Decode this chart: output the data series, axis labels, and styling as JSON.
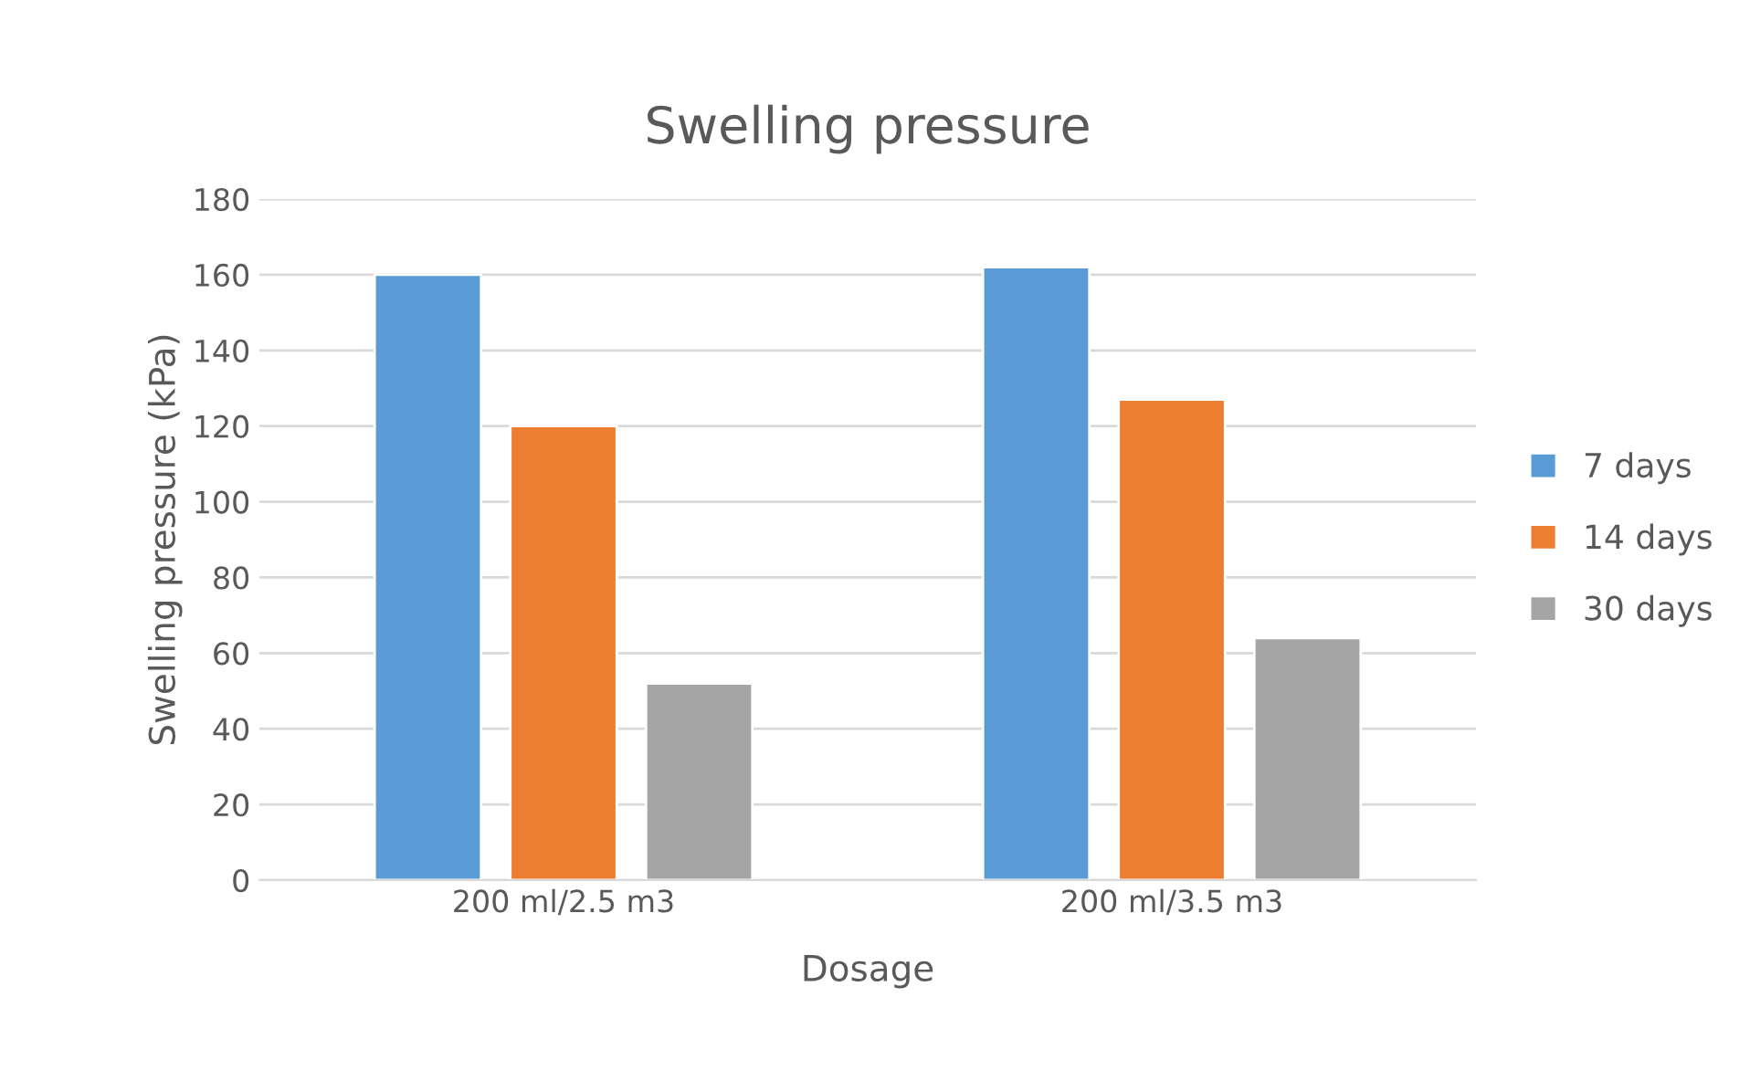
{
  "chart_data": {
    "type": "bar",
    "title": "Swelling pressure",
    "xlabel": "Dosage",
    "ylabel": "Swelling pressure (kPa)",
    "categories": [
      "200 ml/2.5 m3",
      "200 ml/3.5 m3"
    ],
    "series": [
      {
        "name": "7 days",
        "color": "#5b9bd5",
        "values": [
          160,
          162
        ]
      },
      {
        "name": "14 days",
        "color": "#ed7d31",
        "values": [
          120,
          127
        ]
      },
      {
        "name": "30 days",
        "color": "#a5a5a5",
        "values": [
          52,
          64
        ]
      }
    ],
    "ylim": [
      0,
      180
    ],
    "yticks": [
      0,
      20,
      40,
      60,
      80,
      100,
      120,
      140,
      160,
      180
    ],
    "grid": "y",
    "legend": "right"
  }
}
